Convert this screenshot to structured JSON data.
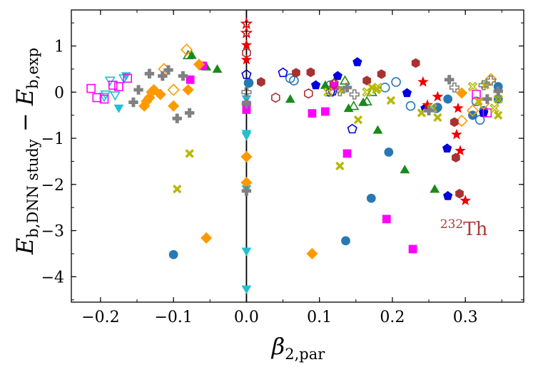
{
  "chart_data": {
    "type": "scatter",
    "title": "",
    "xlabel": {
      "base": "β",
      "sub": "2,par"
    },
    "ylabel": {
      "base1": "E",
      "sub1": "b,DNN study",
      "op": " − ",
      "base2": "E",
      "sub2": "b,exp"
    },
    "xlim": [
      -0.24,
      0.38
    ],
    "ylim": [
      -4.55,
      1.78
    ],
    "x_ticks": [
      -0.2,
      -0.1,
      0.0,
      0.1,
      0.2,
      0.3
    ],
    "x_tick_labels": [
      "−0.2",
      "−0.1",
      "0.0",
      "0.1",
      "0.2",
      "0.3"
    ],
    "y_ticks": [
      -4,
      -3,
      -2,
      -1,
      0,
      1
    ],
    "y_tick_labels": [
      "−4",
      "−3",
      "−2",
      "−1",
      "0",
      "1"
    ],
    "grid": false,
    "legend": "none",
    "annotation": {
      "sup": "232",
      "text": "Th",
      "x": 0.283,
      "y": -2.85,
      "color": "#b03a3a"
    },
    "vertical_line_x": 0.0,
    "series": [
      {
        "marker": "circle",
        "filled": true,
        "color": "#2878b5",
        "points": [
          [
            -0.1,
            -3.52
          ],
          [
            0.136,
            -3.22
          ],
          [
            0.171,
            -2.3
          ],
          [
            0.195,
            -1.3
          ],
          [
            0.262,
            -0.33
          ],
          [
            0.276,
            -0.15
          ],
          [
            0.31,
            -0.5
          ],
          [
            0.345,
            0.12
          ],
          [
            0.345,
            -0.15
          ],
          [
            0.325,
            -0.4
          ],
          [
            0.003,
            0.2
          ]
        ]
      },
      {
        "marker": "circle",
        "filled": false,
        "color": "#2878b5",
        "points": [
          [
            0.06,
            0.3
          ],
          [
            0.065,
            0.25
          ],
          [
            0.115,
            0.15
          ],
          [
            0.19,
            0.1
          ],
          [
            0.205,
            0.22
          ],
          [
            0.225,
            -0.3
          ],
          [
            0.26,
            -0.35
          ],
          [
            0.315,
            -0.2
          ],
          [
            0.32,
            -0.6
          ],
          [
            0.003,
            0.2
          ]
        ]
      },
      {
        "marker": "pentagon",
        "filled": true,
        "color": "#0000dd",
        "points": [
          [
            0.095,
            0.15
          ],
          [
            0.125,
            0.35
          ],
          [
            0.152,
            0.65
          ],
          [
            0.22,
            -0.02
          ],
          [
            0.245,
            -0.35
          ],
          [
            0.275,
            -1.22
          ],
          [
            0.276,
            -2.25
          ],
          [
            0.325,
            -0.45
          ]
        ]
      },
      {
        "marker": "pentagon",
        "filled": false,
        "color": "#0000dd",
        "points": [
          [
            0.0,
            0.38
          ],
          [
            0.05,
            0.42
          ],
          [
            0.115,
            0.0
          ],
          [
            0.145,
            -0.8
          ],
          [
            0.118,
            0.02
          ]
        ]
      },
      {
        "marker": "triangle-up",
        "filled": true,
        "color": "#1a8a1a",
        "points": [
          [
            -0.075,
            0.8
          ],
          [
            -0.055,
            0.55
          ],
          [
            -0.04,
            0.5
          ],
          [
            0.06,
            -0.15
          ],
          [
            0.108,
            0.15
          ],
          [
            0.14,
            -0.35
          ],
          [
            0.16,
            -0.22
          ],
          [
            0.18,
            -0.82
          ],
          [
            0.217,
            -1.68
          ],
          [
            0.258,
            -2.1
          ]
        ]
      },
      {
        "marker": "triangle-up",
        "filled": false,
        "color": "#1a8a1a",
        "points": [
          [
            -0.08,
            0.8
          ],
          [
            0.12,
            0.2
          ],
          [
            0.135,
            0.25
          ],
          [
            0.147,
            -0.3
          ],
          [
            0.165,
            -0.2
          ],
          [
            0.172,
            0.0
          ]
        ]
      },
      {
        "marker": "triangle-down",
        "filled": true,
        "color": "#22c0d0",
        "points": [
          [
            -0.175,
            -0.35
          ],
          [
            -0.165,
            0.35
          ],
          [
            0.0,
            -0.9
          ],
          [
            0.0,
            -0.95
          ],
          [
            0.0,
            -2.1
          ],
          [
            0.0,
            -3.45
          ],
          [
            0.0,
            -4.27
          ],
          [
            0.0,
            -0.15
          ]
        ]
      },
      {
        "marker": "triangle-down",
        "filled": false,
        "color": "#22c0d0",
        "points": [
          [
            -0.187,
            0.25
          ],
          [
            -0.193,
            -0.05
          ],
          [
            -0.18,
            -0.07
          ],
          [
            -0.168,
            0.3
          ],
          [
            -0.195,
            -0.1
          ]
        ]
      },
      {
        "marker": "square",
        "filled": true,
        "color": "#ff00ff",
        "points": [
          [
            -0.077,
            0.27
          ],
          [
            -0.06,
            0.57
          ],
          [
            0.0,
            -0.38
          ],
          [
            0.0,
            -0.28
          ],
          [
            0.09,
            -0.46
          ],
          [
            0.108,
            -0.42
          ],
          [
            0.138,
            -1.33
          ],
          [
            0.192,
            -2.75
          ],
          [
            0.228,
            -3.4
          ],
          [
            0.12,
            0.13
          ]
        ]
      },
      {
        "marker": "square",
        "filled": false,
        "color": "#ff00ff",
        "points": [
          [
            -0.213,
            0.08
          ],
          [
            -0.205,
            -0.12
          ],
          [
            -0.195,
            -0.15
          ],
          [
            -0.183,
            0.15
          ],
          [
            -0.175,
            0.12
          ],
          [
            -0.163,
            0.3
          ],
          [
            0.315,
            -0.05
          ],
          [
            0.33,
            -0.45
          ]
        ]
      },
      {
        "marker": "diamond",
        "filled": true,
        "color": "#ff9900",
        "points": [
          [
            -0.14,
            -0.3
          ],
          [
            -0.137,
            -0.2
          ],
          [
            -0.133,
            -0.12
          ],
          [
            -0.13,
            0.0
          ],
          [
            -0.127,
            0.05
          ],
          [
            -0.118,
            -0.05
          ],
          [
            -0.1,
            -0.3
          ],
          [
            -0.08,
            0.05
          ],
          [
            -0.065,
            0.6
          ],
          [
            -0.055,
            -3.16
          ],
          [
            0.0,
            -1.4
          ],
          [
            0.0,
            -1.96
          ],
          [
            0.09,
            -3.5
          ],
          [
            0.295,
            -0.02
          ]
        ]
      },
      {
        "marker": "diamond",
        "filled": false,
        "color": "#ff9900",
        "points": [
          [
            -0.113,
            0.5
          ],
          [
            -0.1,
            0.05
          ],
          [
            -0.082,
            0.92
          ],
          [
            0.295,
            -0.62
          ],
          [
            0.31,
            -0.4
          ],
          [
            0.325,
            -0.25
          ],
          [
            0.335,
            0.28
          ]
        ]
      },
      {
        "marker": "hexagon",
        "filled": true,
        "color": "#a83232",
        "points": [
          [
            0.02,
            0.22
          ],
          [
            0.068,
            0.42
          ],
          [
            0.088,
            0.43
          ],
          [
            0.165,
            0.25
          ],
          [
            0.185,
            0.39
          ],
          [
            0.232,
            0.63
          ],
          [
            0.285,
            -0.65
          ],
          [
            0.287,
            -1.42
          ],
          [
            0.292,
            -2.2
          ]
        ]
      },
      {
        "marker": "hexagon",
        "filled": false,
        "color": "#a83232",
        "points": [
          [
            0.0,
            0.85
          ],
          [
            0.04,
            -0.12
          ],
          [
            0.085,
            -0.03
          ],
          [
            0.12,
            0.18
          ]
        ]
      },
      {
        "marker": "star",
        "filled": true,
        "color": "#ee0000",
        "points": [
          [
            0.0,
            0.7
          ],
          [
            0.0,
            1.02
          ],
          [
            0.242,
            0.22
          ],
          [
            0.248,
            -0.28
          ],
          [
            0.262,
            -0.1
          ],
          [
            0.288,
            -0.92
          ],
          [
            0.29,
            -0.35
          ],
          [
            0.293,
            -1.27
          ],
          [
            0.3,
            -2.35
          ]
        ]
      },
      {
        "marker": "star",
        "filled": false,
        "color": "#ee0000",
        "points": [
          [
            0.0,
            1.48
          ],
          [
            0.0,
            1.28
          ]
        ]
      },
      {
        "marker": "xcross",
        "filled": true,
        "color": "#b8b800",
        "points": [
          [
            -0.095,
            -2.1
          ],
          [
            -0.078,
            -1.33
          ],
          [
            0.128,
            -1.6
          ],
          [
            0.13,
            0.05
          ],
          [
            0.153,
            -0.6
          ],
          [
            0.172,
            0.1
          ],
          [
            0.178,
            0.05
          ],
          [
            0.198,
            -0.18
          ],
          [
            0.24,
            -0.45
          ],
          [
            0.262,
            -0.55
          ],
          [
            0.318,
            -0.2
          ],
          [
            0.327,
            0.15
          ],
          [
            0.345,
            -0.5
          ]
        ]
      },
      {
        "marker": "xcross",
        "filled": false,
        "color": "#b8b800",
        "points": [
          [
            0.112,
            0.0
          ],
          [
            0.165,
            0.0
          ],
          [
            0.18,
            0.1
          ],
          [
            0.255,
            -0.35
          ],
          [
            0.31,
            0.12
          ],
          [
            0.34,
            -0.35
          ],
          [
            0.345,
            -0.15
          ]
        ]
      },
      {
        "marker": "plus",
        "filled": true,
        "color": "#808080",
        "points": [
          [
            -0.155,
            -0.22
          ],
          [
            -0.148,
            0.05
          ],
          [
            -0.133,
            0.4
          ],
          [
            -0.115,
            0.35
          ],
          [
            -0.107,
            0.48
          ],
          [
            -0.095,
            -0.57
          ],
          [
            -0.087,
            0.35
          ],
          [
            -0.078,
            -0.45
          ],
          [
            0.0,
            -0.25
          ],
          [
            0.0,
            -2.14
          ],
          [
            0.138,
            0.1
          ],
          [
            0.25,
            -0.4
          ],
          [
            0.278,
            0.27
          ],
          [
            0.33,
            -0.15
          ],
          [
            0.345,
            0.02
          ]
        ]
      },
      {
        "marker": "plus",
        "filled": false,
        "color": "#808080",
        "points": [
          [
            0.0,
            0.0
          ],
          [
            0.128,
            0.02
          ],
          [
            0.148,
            -0.05
          ],
          [
            0.285,
            0.1
          ],
          [
            0.325,
            0.15
          ],
          [
            0.335,
            0.25
          ]
        ]
      }
    ]
  }
}
